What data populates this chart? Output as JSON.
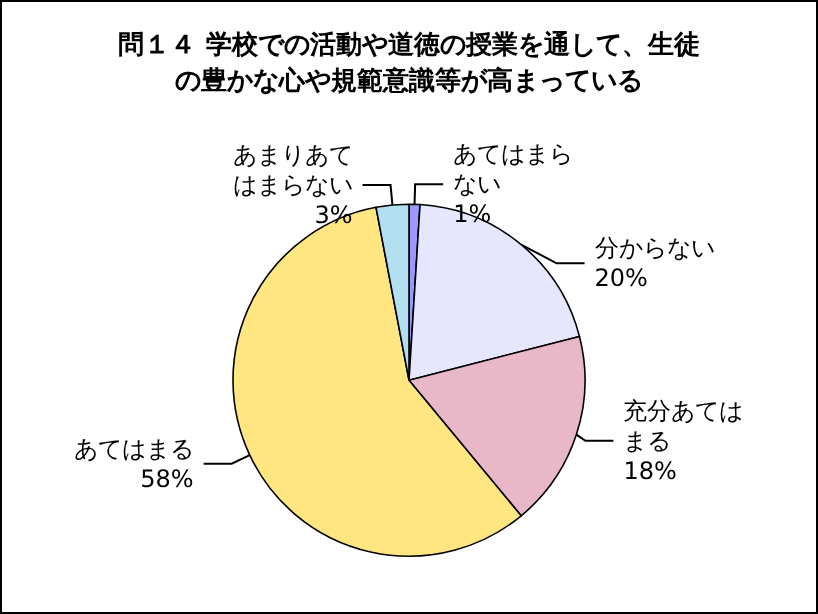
{
  "chart_data": {
    "type": "pie",
    "title": "問１４ 学校での活動や道徳の授業を通して、生徒の豊かな心や規範意識等が高まっている",
    "categories": [
      "あてはまらない",
      "分からない",
      "充分あてはまる",
      "あてはまる",
      "あまりあてはまらない"
    ],
    "values": [
      1,
      20,
      18,
      58,
      3
    ],
    "colors": [
      "#9999ff",
      "#e6e6ff",
      "#e8b8c8",
      "#ffe680",
      "#b3e0f0"
    ],
    "value_labels": [
      "1%",
      "20%",
      "18%",
      "58%",
      "3%"
    ],
    "legend": false
  }
}
